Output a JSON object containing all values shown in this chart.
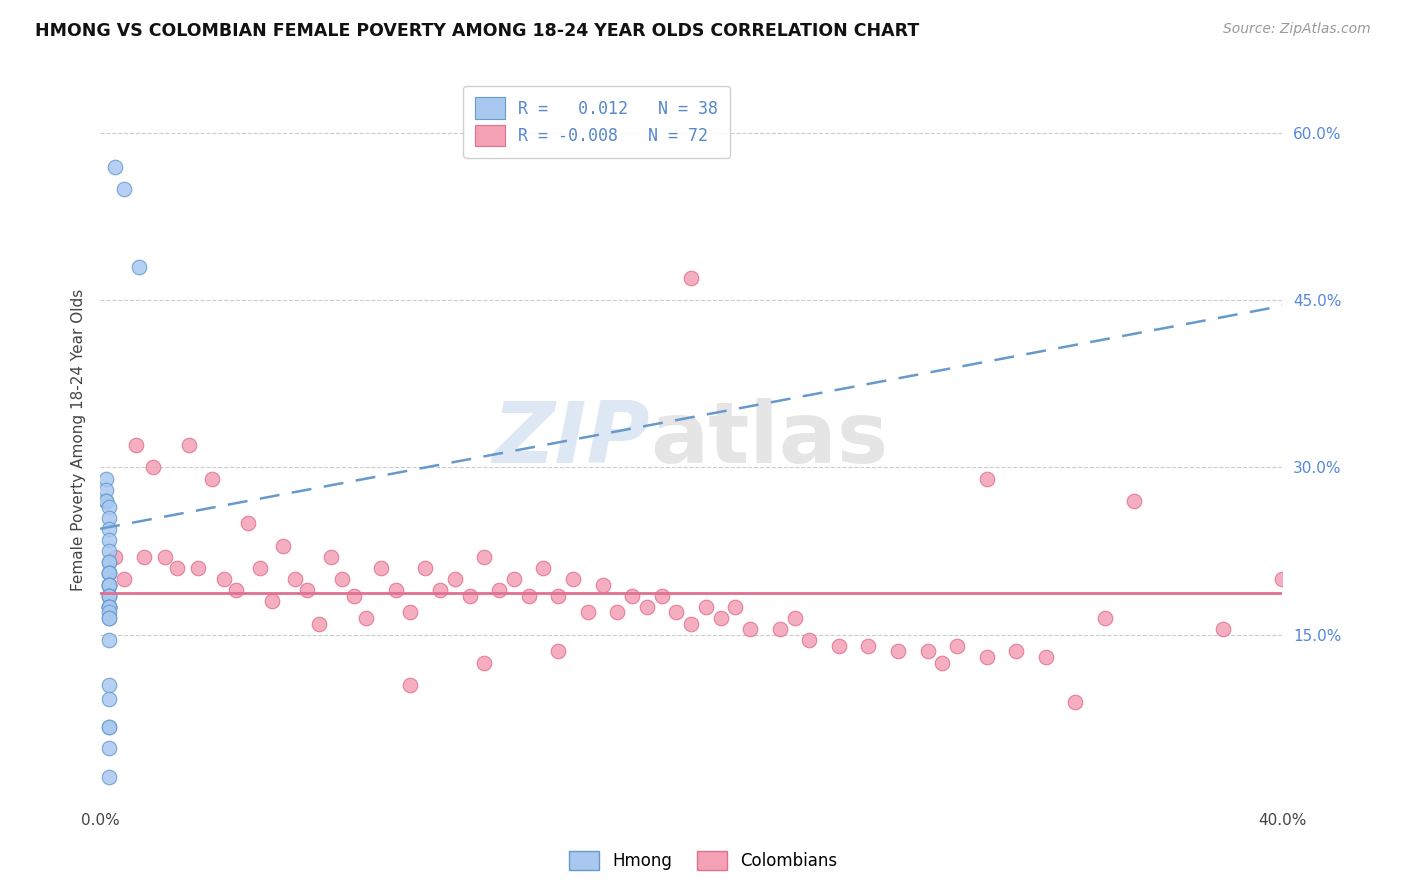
{
  "title": "HMONG VS COLOMBIAN FEMALE POVERTY AMONG 18-24 YEAR OLDS CORRELATION CHART",
  "source": "Source: ZipAtlas.com",
  "ylabel": "Female Poverty Among 18-24 Year Olds",
  "xlim": [
    0.0,
    0.4
  ],
  "ylim": [
    0.0,
    0.65
  ],
  "y_ticks_right": [
    0.15,
    0.3,
    0.45,
    0.6
  ],
  "y_tick_labels_right": [
    "15.0%",
    "30.0%",
    "45.0%",
    "60.0%"
  ],
  "hmong_color": "#a8c8f0",
  "colombian_color": "#f4a0b5",
  "hmong_edge": "#6699cc",
  "colombian_edge": "#e07090",
  "trendline_hmong_color": "#6699cc",
  "trendline_colombian_color": "#e07090",
  "legend_hmong_r": "0.012",
  "legend_hmong_n": "38",
  "legend_colombian_r": "-0.008",
  "legend_colombian_n": "72",
  "hmong_trendline": [
    [
      0.0,
      0.245
    ],
    [
      0.4,
      0.445
    ]
  ],
  "colombian_trendline": [
    [
      0.0,
      0.187
    ],
    [
      0.4,
      0.187
    ]
  ],
  "hmong_x": [
    0.005,
    0.008,
    0.013,
    0.002,
    0.002,
    0.002,
    0.002,
    0.003,
    0.003,
    0.003,
    0.003,
    0.003,
    0.003,
    0.003,
    0.003,
    0.003,
    0.003,
    0.003,
    0.003,
    0.003,
    0.003,
    0.003,
    0.003,
    0.003,
    0.003,
    0.003,
    0.003,
    0.003,
    0.003,
    0.003,
    0.003,
    0.003,
    0.003,
    0.003,
    0.003,
    0.003,
    0.003,
    0.003
  ],
  "hmong_y": [
    0.57,
    0.55,
    0.48,
    0.29,
    0.28,
    0.27,
    0.27,
    0.265,
    0.255,
    0.245,
    0.235,
    0.225,
    0.215,
    0.215,
    0.205,
    0.205,
    0.205,
    0.195,
    0.195,
    0.195,
    0.195,
    0.185,
    0.185,
    0.185,
    0.175,
    0.175,
    0.175,
    0.175,
    0.17,
    0.165,
    0.165,
    0.145,
    0.105,
    0.092,
    0.067,
    0.067,
    0.048,
    0.022
  ],
  "colombian_x": [
    0.005,
    0.008,
    0.012,
    0.015,
    0.018,
    0.022,
    0.026,
    0.03,
    0.033,
    0.038,
    0.042,
    0.046,
    0.05,
    0.054,
    0.058,
    0.062,
    0.066,
    0.07,
    0.074,
    0.078,
    0.082,
    0.086,
    0.09,
    0.095,
    0.1,
    0.105,
    0.11,
    0.115,
    0.12,
    0.125,
    0.13,
    0.135,
    0.14,
    0.145,
    0.15,
    0.155,
    0.16,
    0.165,
    0.17,
    0.175,
    0.18,
    0.185,
    0.19,
    0.195,
    0.2,
    0.205,
    0.21,
    0.215,
    0.22,
    0.23,
    0.235,
    0.24,
    0.25,
    0.26,
    0.27,
    0.28,
    0.285,
    0.29,
    0.3,
    0.31,
    0.32,
    0.33,
    0.34,
    0.2,
    0.3,
    0.35,
    0.38,
    0.4,
    0.155,
    0.13,
    0.105
  ],
  "colombian_y": [
    0.22,
    0.2,
    0.32,
    0.22,
    0.3,
    0.22,
    0.21,
    0.32,
    0.21,
    0.29,
    0.2,
    0.19,
    0.25,
    0.21,
    0.18,
    0.23,
    0.2,
    0.19,
    0.16,
    0.22,
    0.2,
    0.185,
    0.165,
    0.21,
    0.19,
    0.17,
    0.21,
    0.19,
    0.2,
    0.185,
    0.22,
    0.19,
    0.2,
    0.185,
    0.21,
    0.185,
    0.2,
    0.17,
    0.195,
    0.17,
    0.185,
    0.175,
    0.185,
    0.17,
    0.16,
    0.175,
    0.165,
    0.175,
    0.155,
    0.155,
    0.165,
    0.145,
    0.14,
    0.14,
    0.135,
    0.135,
    0.125,
    0.14,
    0.13,
    0.135,
    0.13,
    0.09,
    0.165,
    0.47,
    0.29,
    0.27,
    0.155,
    0.2,
    0.135,
    0.125,
    0.105
  ]
}
